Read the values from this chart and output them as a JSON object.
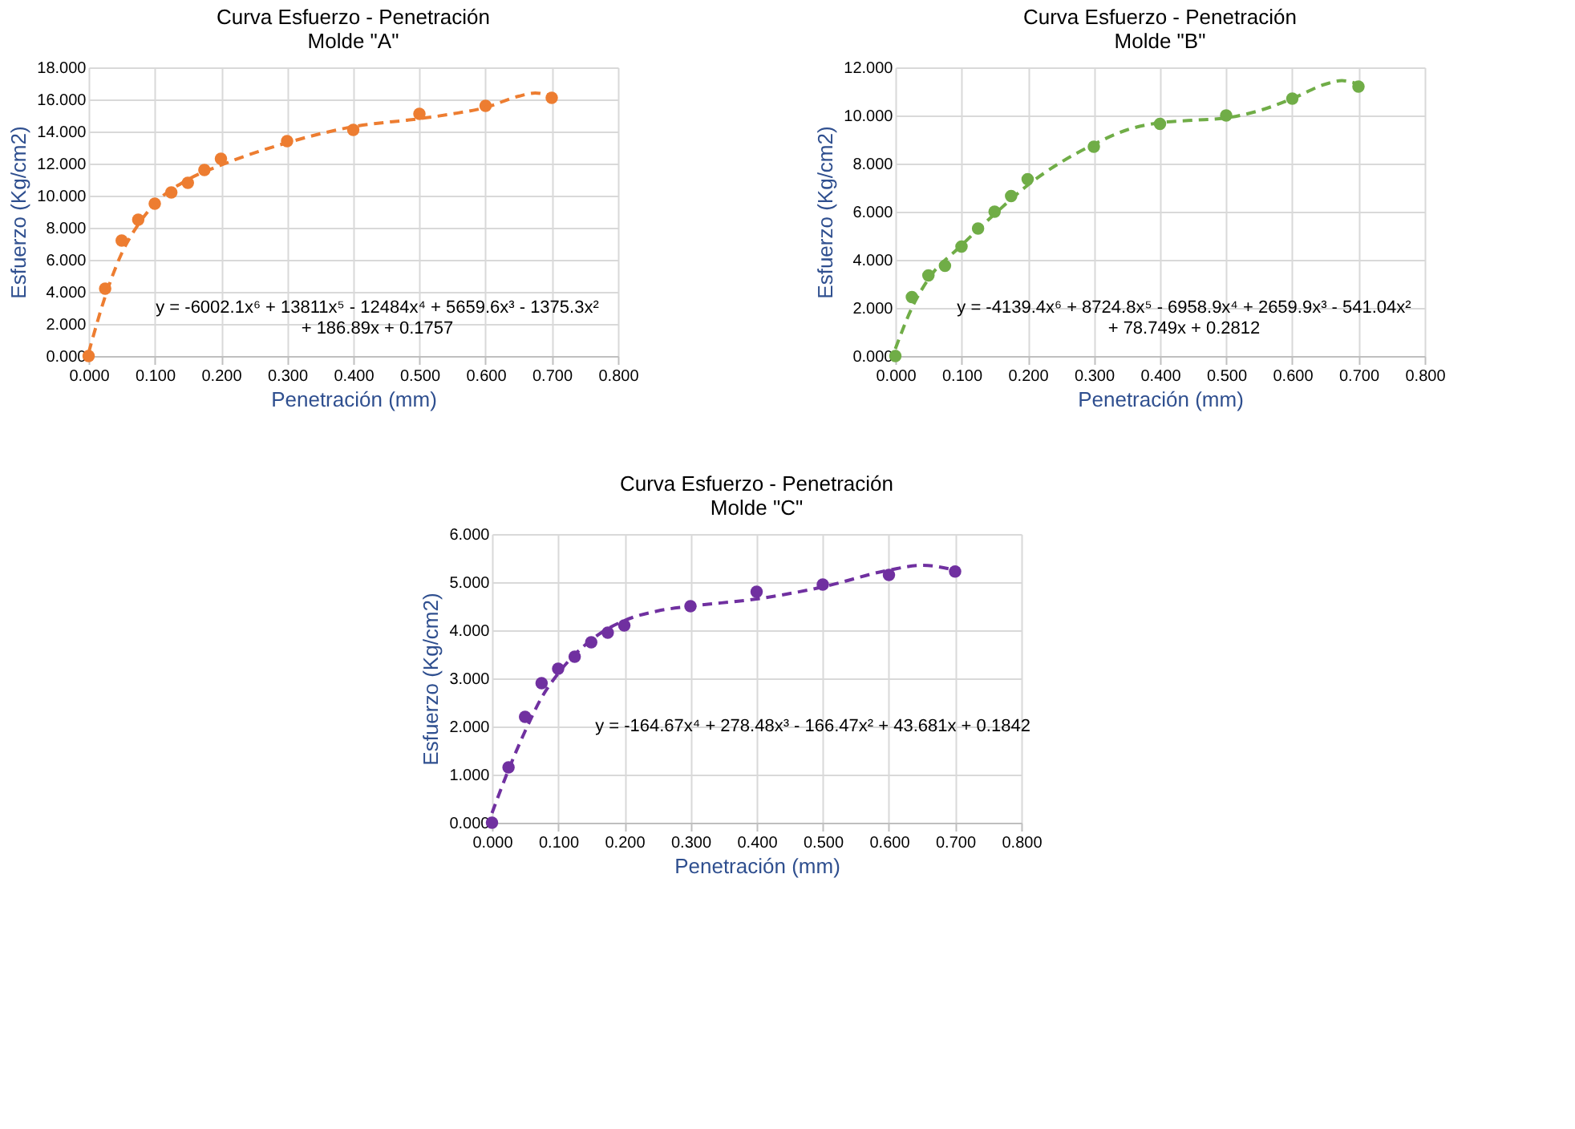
{
  "chart_data": [
    {
      "type": "scatter",
      "title": "Curva Esfuerzo - Penetración",
      "subtitle": "Molde \"A\"",
      "xlabel": "Penetración (mm)",
      "ylabel": "Esfuerzo (Kg/cm2)",
      "xlim": [
        0,
        0.8
      ],
      "xticks": [
        {
          "value": 0,
          "label": "0.000"
        },
        {
          "value": 0.1,
          "label": "0.100"
        },
        {
          "value": 0.2,
          "label": "0.200"
        },
        {
          "value": 0.3,
          "label": "0.300"
        },
        {
          "value": 0.4,
          "label": "0.400"
        },
        {
          "value": 0.5,
          "label": "0.500"
        },
        {
          "value": 0.6,
          "label": "0.600"
        },
        {
          "value": 0.7,
          "label": "0.700"
        },
        {
          "value": 0.8,
          "label": "0.800"
        }
      ],
      "ylim": [
        0,
        18
      ],
      "yticks": [
        {
          "value": 0,
          "label": "0.000"
        },
        {
          "value": 2,
          "label": "2.000"
        },
        {
          "value": 4,
          "label": "4.000"
        },
        {
          "value": 6,
          "label": "6.000"
        },
        {
          "value": 8,
          "label": "8.000"
        },
        {
          "value": 10,
          "label": "10.000"
        },
        {
          "value": 12,
          "label": "12.000"
        },
        {
          "value": 14,
          "label": "14.000"
        },
        {
          "value": 16,
          "label": "16.000"
        },
        {
          "value": 18,
          "label": "18.000"
        }
      ],
      "grid": true,
      "series": [
        {
          "type": "scatter",
          "color": "#ed7d31",
          "marker": "circle",
          "x": [
            0,
            0.025,
            0.05,
            0.075,
            0.1,
            0.125,
            0.15,
            0.175,
            0.2,
            0.3,
            0.4,
            0.5,
            0.6,
            0.7
          ],
          "values": [
            0,
            4.2,
            7.2,
            8.5,
            9.5,
            10.2,
            10.8,
            11.6,
            12.3,
            13.4,
            14.1,
            15.1,
            15.6,
            16.1
          ]
        },
        {
          "type": "line",
          "color": "#ed7d31",
          "line_style": "dashed",
          "marker": "none",
          "x": [
            0,
            0.025,
            0.05,
            0.075,
            0.1,
            0.15,
            0.2,
            0.3,
            0.4,
            0.5,
            0.55,
            0.6,
            0.65,
            0.675,
            0.7
          ],
          "values": [
            0.2,
            3.7,
            6.4,
            8.2,
            9.5,
            11.0,
            11.9,
            13.3,
            14.3,
            14.8,
            15.1,
            15.5,
            16.2,
            16.4,
            16.2
          ]
        }
      ],
      "annotations": [
        "y = -6002.1x⁶ + 13811x⁵ - 12484x⁴ + 5659.6x³ - 1375.3x²\n+ 186.89x + 0.1757"
      ]
    },
    {
      "type": "scatter",
      "title": "Curva Esfuerzo - Penetración",
      "subtitle": "Molde \"B\"",
      "xlabel": "Penetración (mm)",
      "ylabel": "Esfuerzo (Kg/cm2)",
      "xlim": [
        0,
        0.8
      ],
      "xticks": [
        {
          "value": 0,
          "label": "0.000"
        },
        {
          "value": 0.1,
          "label": "0.100"
        },
        {
          "value": 0.2,
          "label": "0.200"
        },
        {
          "value": 0.3,
          "label": "0.300"
        },
        {
          "value": 0.4,
          "label": "0.400"
        },
        {
          "value": 0.5,
          "label": "0.500"
        },
        {
          "value": 0.6,
          "label": "0.600"
        },
        {
          "value": 0.7,
          "label": "0.700"
        },
        {
          "value": 0.8,
          "label": "0.800"
        }
      ],
      "ylim": [
        0,
        12
      ],
      "yticks": [
        {
          "value": 0,
          "label": "0.000"
        },
        {
          "value": 2,
          "label": "2.000"
        },
        {
          "value": 4,
          "label": "4.000"
        },
        {
          "value": 6,
          "label": "6.000"
        },
        {
          "value": 8,
          "label": "8.000"
        },
        {
          "value": 10,
          "label": "10.000"
        },
        {
          "value": 12,
          "label": "12.000"
        }
      ],
      "grid": true,
      "series": [
        {
          "type": "scatter",
          "color": "#70ad47",
          "marker": "circle",
          "x": [
            0,
            0.025,
            0.05,
            0.075,
            0.1,
            0.125,
            0.15,
            0.175,
            0.2,
            0.3,
            0.4,
            0.5,
            0.6,
            0.7
          ],
          "values": [
            0,
            2.45,
            3.35,
            3.75,
            4.55,
            5.3,
            6.0,
            6.65,
            7.35,
            8.7,
            9.65,
            10.0,
            10.7,
            11.2
          ]
        },
        {
          "type": "line",
          "color": "#70ad47",
          "line_style": "dashed",
          "marker": "none",
          "x": [
            0,
            0.025,
            0.05,
            0.1,
            0.15,
            0.2,
            0.3,
            0.35,
            0.4,
            0.45,
            0.5,
            0.55,
            0.6,
            0.65,
            0.675,
            0.7
          ],
          "values": [
            0.3,
            2.0,
            3.2,
            4.6,
            5.9,
            7.1,
            8.8,
            9.4,
            9.7,
            9.8,
            9.9,
            10.2,
            10.7,
            11.3,
            11.45,
            11.3
          ]
        }
      ],
      "annotations": [
        "y = -4139.4x⁶ + 8724.8x⁵ - 6958.9x⁴ + 2659.9x³ - 541.04x²\n+ 78.749x + 0.2812"
      ]
    },
    {
      "type": "scatter",
      "title": "Curva Esfuerzo - Penetración",
      "subtitle": "Molde \"C\"",
      "xlabel": "Penetración (mm)",
      "ylabel": "Esfuerzo (Kg/cm2)",
      "xlim": [
        0,
        0.8
      ],
      "xticks": [
        {
          "value": 0,
          "label": "0.000"
        },
        {
          "value": 0.1,
          "label": "0.100"
        },
        {
          "value": 0.2,
          "label": "0.200"
        },
        {
          "value": 0.3,
          "label": "0.300"
        },
        {
          "value": 0.4,
          "label": "0.400"
        },
        {
          "value": 0.5,
          "label": "0.500"
        },
        {
          "value": 0.6,
          "label": "0.600"
        },
        {
          "value": 0.7,
          "label": "0.700"
        },
        {
          "value": 0.8,
          "label": "0.800"
        }
      ],
      "ylim": [
        0,
        6
      ],
      "yticks": [
        {
          "value": 0,
          "label": "0.000"
        },
        {
          "value": 1,
          "label": "1.000"
        },
        {
          "value": 2,
          "label": "2.000"
        },
        {
          "value": 3,
          "label": "3.000"
        },
        {
          "value": 4,
          "label": "4.000"
        },
        {
          "value": 5,
          "label": "5.000"
        },
        {
          "value": 6,
          "label": "6.000"
        }
      ],
      "grid": true,
      "series": [
        {
          "type": "scatter",
          "color": "#7030a0",
          "marker": "circle",
          "x": [
            0,
            0.025,
            0.05,
            0.075,
            0.1,
            0.125,
            0.15,
            0.175,
            0.2,
            0.3,
            0.4,
            0.5,
            0.6,
            0.7
          ],
          "values": [
            0,
            1.15,
            2.2,
            2.9,
            3.2,
            3.45,
            3.75,
            3.95,
            4.1,
            4.5,
            4.8,
            4.95,
            5.15,
            5.22
          ]
        },
        {
          "type": "line",
          "color": "#7030a0",
          "line_style": "dashed",
          "marker": "none",
          "x": [
            0,
            0.025,
            0.05,
            0.075,
            0.1,
            0.15,
            0.2,
            0.25,
            0.3,
            0.4,
            0.5,
            0.6,
            0.65,
            0.7
          ],
          "values": [
            0.2,
            1.1,
            1.9,
            2.6,
            3.1,
            3.8,
            4.2,
            4.4,
            4.5,
            4.65,
            4.9,
            5.25,
            5.35,
            5.25
          ]
        }
      ],
      "annotations": [
        "y = -164.67x⁴ + 278.48x³ - 166.47x² + 43.681x + 0.1842"
      ]
    }
  ]
}
